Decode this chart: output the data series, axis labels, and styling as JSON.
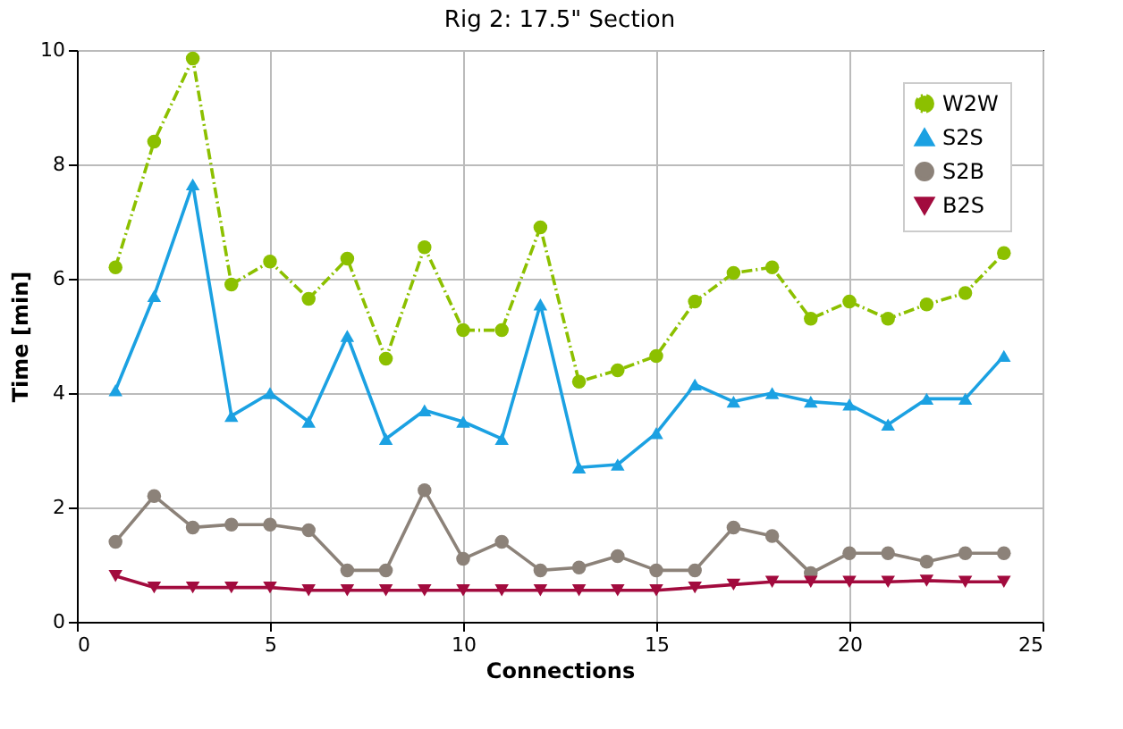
{
  "chart_data": {
    "type": "line",
    "title": "Rig 2: 17.5\" Section",
    "xlabel": "Connections",
    "ylabel": "Time [min]",
    "x": [
      1,
      2,
      3,
      4,
      5,
      6,
      7,
      8,
      9,
      10,
      11,
      12,
      13,
      14,
      15,
      16,
      17,
      18,
      19,
      20,
      21,
      22,
      23,
      24
    ],
    "series": [
      {
        "name": "W2W",
        "color": "#8cc000",
        "marker": "circle",
        "line_style": "dashed",
        "values": [
          6.2,
          8.4,
          9.85,
          5.9,
          6.3,
          5.65,
          6.35,
          4.6,
          6.55,
          5.1,
          5.1,
          6.9,
          4.2,
          4.4,
          4.65,
          5.6,
          6.1,
          6.2,
          5.3,
          5.6,
          5.3,
          5.55,
          5.75,
          6.45
        ]
      },
      {
        "name": "S2S",
        "color": "#1ba1e2",
        "marker": "triangle",
        "line_style": "solid",
        "values": [
          4.05,
          5.7,
          7.65,
          3.6,
          4.0,
          3.5,
          5.0,
          3.2,
          3.7,
          3.5,
          3.2,
          5.55,
          2.7,
          2.75,
          3.3,
          4.15,
          3.85,
          4.0,
          3.85,
          3.8,
          3.45,
          3.9,
          3.9,
          4.65
        ]
      },
      {
        "name": "S2B",
        "color": "#8c8279",
        "marker": "circle",
        "line_style": "solid",
        "values": [
          1.4,
          2.2,
          1.65,
          1.7,
          1.7,
          1.6,
          0.9,
          0.9,
          2.3,
          1.1,
          1.4,
          0.9,
          0.95,
          1.15,
          0.9,
          0.9,
          1.65,
          1.5,
          0.85,
          1.2,
          1.2,
          1.05,
          1.2,
          1.2
        ]
      },
      {
        "name": "B2S",
        "color": "#a20b3e",
        "marker": "triangle-down",
        "line_style": "solid",
        "values": [
          0.8,
          0.6,
          0.6,
          0.6,
          0.6,
          0.55,
          0.55,
          0.55,
          0.55,
          0.55,
          0.55,
          0.55,
          0.55,
          0.55,
          0.55,
          0.6,
          0.65,
          0.7,
          0.7,
          0.7,
          0.7,
          0.72,
          0.7,
          0.7
        ]
      }
    ],
    "xlim": [
      0,
      25
    ],
    "xticks": [
      0,
      5,
      10,
      15,
      20,
      25
    ],
    "ylim": [
      0,
      10
    ],
    "yticks": [
      0,
      2,
      4,
      6,
      8,
      10
    ],
    "grid": true,
    "legend": "top right"
  }
}
